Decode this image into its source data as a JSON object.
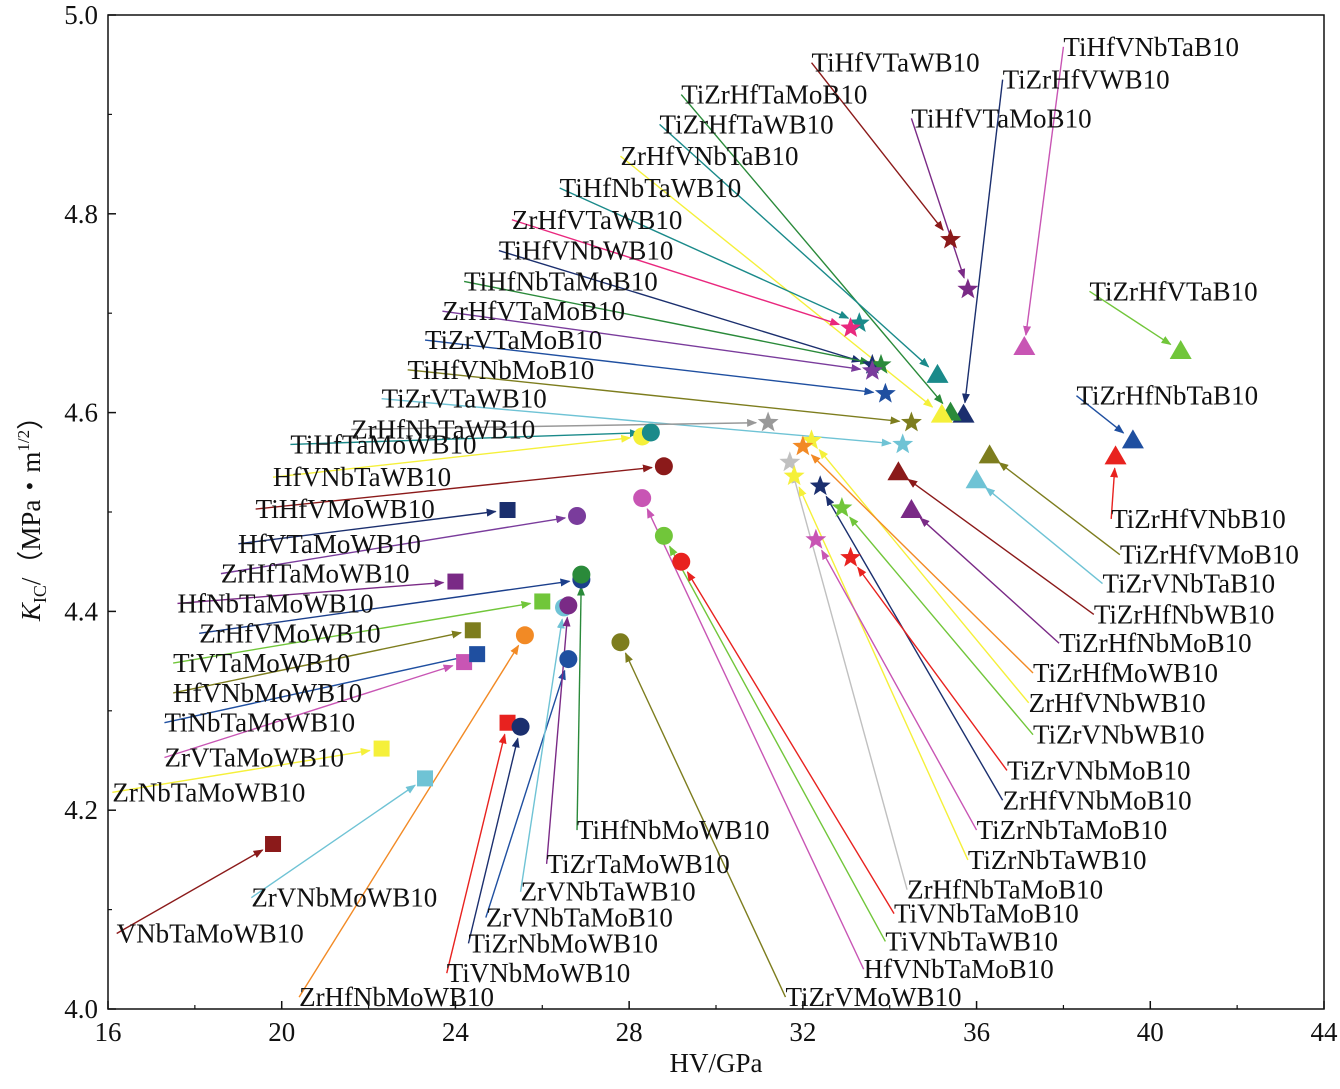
{
  "chart_data": {
    "type": "scatter",
    "xlabel": "HV/GPa",
    "ylabel": {
      "base": "K",
      "sub": "IC",
      "rest": "/（MPa・m",
      "sup": "1/2",
      "close": "）"
    },
    "xlim": [
      16,
      44
    ],
    "ylim": [
      4.0,
      5.0
    ],
    "xticks": [
      "16",
      "20",
      "24",
      "28",
      "32",
      "36",
      "40",
      "44"
    ],
    "yticks": [
      "4.0",
      "4.2",
      "4.4",
      "4.6",
      "4.8",
      "5.0"
    ],
    "grid": false,
    "points": [
      {
        "label": "VNbTaMoWB10",
        "x": 19.8,
        "y": 4.166,
        "shape": "square",
        "color": "#8b1a1a",
        "lx": 16.2,
        "ly": 4.076
      },
      {
        "label": "ZrVNbMoWB10",
        "x": 23.3,
        "y": 4.232,
        "shape": "square",
        "color": "#6fc3d5",
        "lx": 19.3,
        "ly": 4.112
      },
      {
        "label": "ZrNbTaMoWB10",
        "x": 22.3,
        "y": 4.262,
        "shape": "square",
        "color": "#f5f03a",
        "lx": 16.1,
        "ly": 4.218
      },
      {
        "label": "ZrVTaMoWB10",
        "x": 24.2,
        "y": 4.349,
        "shape": "square",
        "color": "#c855b4",
        "lx": 17.3,
        "ly": 4.253
      },
      {
        "label": "TiNbTaMoWB10",
        "x": 24.5,
        "y": 4.357,
        "shape": "square",
        "color": "#1f4fa0",
        "lx": 17.3,
        "ly": 4.288
      },
      {
        "label": "HfVNbMoWB10",
        "x": 24.4,
        "y": 4.381,
        "shape": "square",
        "color": "#7d7d1e",
        "lx": 17.5,
        "ly": 4.318
      },
      {
        "label": "TiVTaMoWB10",
        "x": 26.0,
        "y": 4.41,
        "shape": "square",
        "color": "#71c63a",
        "lx": 17.5,
        "ly": 4.348
      },
      {
        "label": "ZrHfVMoWB10",
        "x": 26.9,
        "y": 4.432,
        "shape": "circle",
        "color": "#1b3f8c",
        "lx": 18.1,
        "ly": 4.378
      },
      {
        "label": "HfNbTaMoWB10",
        "x": 24.0,
        "y": 4.43,
        "shape": "square",
        "color": "#7a2a86",
        "lx": 17.6,
        "ly": 4.408
      },
      {
        "label": "ZrHfTaMoWB10",
        "x": 26.8,
        "y": 4.496,
        "shape": "circle",
        "color": "#7a3c9c",
        "lx": 18.6,
        "ly": 4.438
      },
      {
        "label": "HfVTaMoWB10",
        "x": 25.2,
        "y": 4.502,
        "shape": "square",
        "color": "#1b2f6e",
        "lx": 19.0,
        "ly": 4.468
      },
      {
        "label": "TiHfVMoWB10",
        "x": 28.8,
        "y": 4.546,
        "shape": "circle",
        "color": "#8b1a1a",
        "lx": 19.4,
        "ly": 4.503
      },
      {
        "label": "HfVNbTaWB10",
        "x": 28.3,
        "y": 4.576,
        "shape": "circle",
        "color": "#f5f03a",
        "lx": 19.8,
        "ly": 4.535
      },
      {
        "label": "TiHfTaMoWB10",
        "x": 28.5,
        "y": 4.58,
        "shape": "circle",
        "color": "#1a8a8a",
        "lx": 20.2,
        "ly": 4.568
      },
      {
        "label": "ZrHfNbMoWB10",
        "x": 25.6,
        "y": 4.376,
        "shape": "circle",
        "color": "#f28a25",
        "lx": 20.4,
        "ly": 4.012
      },
      {
        "label": "TiVNbMoWB10",
        "x": 25.2,
        "y": 4.288,
        "shape": "square",
        "color": "#e8221f",
        "lx": 23.8,
        "ly": 4.036
      },
      {
        "label": "TiZrNbMoWB10",
        "x": 25.5,
        "y": 4.284,
        "shape": "circle",
        "color": "#1b2f6e",
        "lx": 24.3,
        "ly": 4.066
      },
      {
        "label": "ZrVNbTaMoB10",
        "x": 26.6,
        "y": 4.352,
        "shape": "circle",
        "color": "#1f4fa0",
        "lx": 24.7,
        "ly": 4.092
      },
      {
        "label": "ZrVNbTaWB10",
        "x": 26.5,
        "y": 4.404,
        "shape": "circle",
        "color": "#6fc3d5",
        "lx": 25.5,
        "ly": 4.118
      },
      {
        "label": "TiZrTaMoWB10",
        "x": 26.6,
        "y": 4.406,
        "shape": "circle",
        "color": "#7a2a86",
        "lx": 26.1,
        "ly": 4.146
      },
      {
        "label": "TiHfNbMoWB10",
        "x": 26.9,
        "y": 4.437,
        "shape": "circle",
        "color": "#2a8a3a",
        "lx": 26.8,
        "ly": 4.18
      },
      {
        "label": "TiZrVMoWB10",
        "x": 27.8,
        "y": 4.369,
        "shape": "circle",
        "color": "#7d7d1e",
        "lx": 31.6,
        "ly": 4.012
      },
      {
        "label": "HfVNbTaMoB10",
        "x": 28.3,
        "y": 4.514,
        "shape": "circle",
        "color": "#c855b4",
        "lx": 33.4,
        "ly": 4.04
      },
      {
        "label": "TiVNbTaWB10",
        "x": 28.8,
        "y": 4.476,
        "shape": "circle",
        "color": "#71c63a",
        "lx": 33.9,
        "ly": 4.068
      },
      {
        "label": "TiVNbTaMoB10",
        "x": 29.2,
        "y": 4.45,
        "shape": "circle",
        "color": "#e8221f",
        "lx": 34.1,
        "ly": 4.096
      },
      {
        "label": "ZrHfNbTaMoB10",
        "x": 31.7,
        "y": 4.55,
        "shape": "star",
        "color": "#c0c0c0",
        "lx": 34.4,
        "ly": 4.12
      },
      {
        "label": "TiZrNbTaWB10",
        "x": 31.8,
        "y": 4.536,
        "shape": "star",
        "color": "#f5f03a",
        "lx": 35.8,
        "ly": 4.15
      },
      {
        "label": "TiZrNbTaMoB10",
        "x": 32.3,
        "y": 4.472,
        "shape": "star",
        "color": "#c855b4",
        "lx": 36.0,
        "ly": 4.18
      },
      {
        "label": "ZrHfVNbMoB10",
        "x": 32.4,
        "y": 4.526,
        "shape": "star",
        "color": "#1b2f6e",
        "lx": 36.6,
        "ly": 4.21
      },
      {
        "label": "TiZrVNbMoB10",
        "x": 33.1,
        "y": 4.454,
        "shape": "star",
        "color": "#e8221f",
        "lx": 36.7,
        "ly": 4.24
      },
      {
        "label": "TiZrVNbWB10",
        "x": 32.9,
        "y": 4.504,
        "shape": "star",
        "color": "#71c63a",
        "lx": 37.3,
        "ly": 4.276
      },
      {
        "label": "ZrHfVNbWB10",
        "x": 32.2,
        "y": 4.572,
        "shape": "star",
        "color": "#f5f03a",
        "lx": 37.2,
        "ly": 4.308
      },
      {
        "label": "TiZrHfMoWB10",
        "x": 32.0,
        "y": 4.566,
        "shape": "star",
        "color": "#f28a25",
        "lx": 37.3,
        "ly": 4.338
      },
      {
        "label": "TiZrHfNbMoB10",
        "x": 34.5,
        "y": 4.502,
        "shape": "triangle",
        "color": "#7a2a86",
        "lx": 37.9,
        "ly": 4.368
      },
      {
        "label": "TiZrHfNbWB10",
        "x": 34.2,
        "y": 4.54,
        "shape": "triangle",
        "color": "#8b1a1a",
        "lx": 38.7,
        "ly": 4.397
      },
      {
        "label": "TiZrVNbTaB10",
        "x": 36.0,
        "y": 4.532,
        "shape": "triangle",
        "color": "#6fc3d5",
        "lx": 38.9,
        "ly": 4.428
      },
      {
        "label": "TiZrHfVMoB10",
        "x": 36.3,
        "y": 4.557,
        "shape": "triangle",
        "color": "#7d7d1e",
        "lx": 39.3,
        "ly": 4.457
      },
      {
        "label": "TiZrHfVNbB10",
        "x": 39.2,
        "y": 4.556,
        "shape": "triangle",
        "color": "#e8221f",
        "lx": 39.1,
        "ly": 4.493
      },
      {
        "label": "TiZrHfNbTaB10",
        "x": 39.6,
        "y": 4.572,
        "shape": "triangle",
        "color": "#1f4fa0",
        "lx": 38.3,
        "ly": 4.617
      },
      {
        "label": "TiZrHfVTaB10",
        "x": 40.7,
        "y": 4.662,
        "shape": "triangle",
        "color": "#71c63a",
        "lx": 38.6,
        "ly": 4.722
      },
      {
        "label": "TiHfVNbTaB10",
        "x": 37.1,
        "y": 4.666,
        "shape": "triangle",
        "color": "#c855b4",
        "lx": 38.0,
        "ly": 4.968
      },
      {
        "label": "TiZrHfVWB10",
        "x": 35.7,
        "y": 4.598,
        "shape": "triangle",
        "color": "#1b2f6e",
        "lx": 36.6,
        "ly": 4.935
      },
      {
        "label": "TiHfVTaMoB10",
        "x": 35.8,
        "y": 4.724,
        "shape": "star",
        "color": "#7a2a86",
        "lx": 34.5,
        "ly": 4.896
      },
      {
        "label": "TiHfVTaWB10",
        "x": 35.4,
        "y": 4.774,
        "shape": "star",
        "color": "#8b1a1a",
        "lx": 32.2,
        "ly": 4.952
      },
      {
        "label": "TiZrHfTaMoB10",
        "x": 35.4,
        "y": 4.6,
        "shape": "triangle",
        "color": "#2a8a3a",
        "lx": 29.2,
        "ly": 4.92
      },
      {
        "label": "TiZrHfTaWB10",
        "x": 35.1,
        "y": 4.638,
        "shape": "triangle",
        "color": "#1a8a8a",
        "lx": 28.7,
        "ly": 4.89
      },
      {
        "label": "ZrHfVNbTaB10",
        "x": 35.2,
        "y": 4.598,
        "shape": "triangle",
        "color": "#f5f03a",
        "lx": 27.8,
        "ly": 4.858
      },
      {
        "label": "TiHfNbTaWB10",
        "x": 33.3,
        "y": 4.69,
        "shape": "star",
        "color": "#1a8a8a",
        "lx": 26.4,
        "ly": 4.826
      },
      {
        "label": "ZrHfVTaWB10",
        "x": 33.1,
        "y": 4.685,
        "shape": "star",
        "color": "#e9287e",
        "lx": 25.3,
        "ly": 4.794
      },
      {
        "label": "TiHfVNbWB10",
        "x": 33.6,
        "y": 4.648,
        "shape": "star",
        "color": "#1b2f6e",
        "lx": 25.0,
        "ly": 4.763
      },
      {
        "label": "TiHfNbTaMoB10",
        "x": 33.8,
        "y": 4.648,
        "shape": "star",
        "color": "#2a8a3a",
        "lx": 24.2,
        "ly": 4.732
      },
      {
        "label": "ZrHfVTaMoB10",
        "x": 33.6,
        "y": 4.642,
        "shape": "star",
        "color": "#7a3c9c",
        "lx": 23.7,
        "ly": 4.702
      },
      {
        "label": "TiZrVTaMoB10",
        "x": 33.9,
        "y": 4.619,
        "shape": "star",
        "color": "#1f4fa0",
        "lx": 23.3,
        "ly": 4.673
      },
      {
        "label": "TiHfVNbMoB10",
        "x": 34.5,
        "y": 4.59,
        "shape": "star",
        "color": "#7d7d1e",
        "lx": 22.9,
        "ly": 4.643
      },
      {
        "label": "TiZrVTaWB10",
        "x": 34.3,
        "y": 4.568,
        "shape": "star",
        "color": "#6fc3d5",
        "lx": 22.3,
        "ly": 4.614
      },
      {
        "label": "ZrHfNbTaWB10",
        "x": 31.2,
        "y": 4.59,
        "shape": "star",
        "color": "#999999",
        "lx": 21.6,
        "ly": 4.583
      }
    ]
  }
}
